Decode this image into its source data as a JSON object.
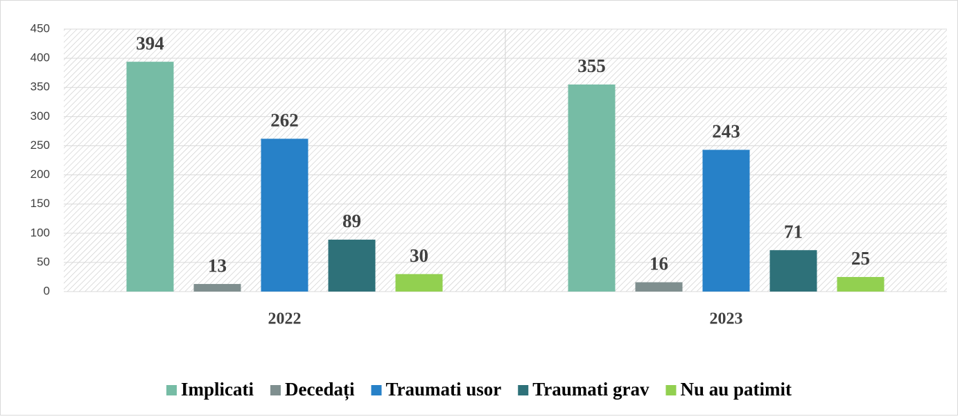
{
  "chart_data": {
    "type": "bar",
    "categories": [
      "2022",
      "2023"
    ],
    "series": [
      {
        "name": "Implicati",
        "color": "#76bca5",
        "values": [
          394,
          355
        ]
      },
      {
        "name": "Decedați",
        "color": "#7f8f8f",
        "values": [
          13,
          16
        ]
      },
      {
        "name": "Traumati usor",
        "color": "#2781c8",
        "values": [
          262,
          243
        ]
      },
      {
        "name": "Traumati grav",
        "color": "#2e7179",
        "values": [
          89,
          71
        ]
      },
      {
        "name": "Nu au patimit",
        "color": "#92d050",
        "values": [
          30,
          25
        ]
      }
    ],
    "ylim": [
      0,
      450
    ],
    "yticks": [
      0,
      50,
      100,
      150,
      200,
      250,
      300,
      350,
      400,
      450
    ],
    "grid": true,
    "legend": "bottom"
  }
}
